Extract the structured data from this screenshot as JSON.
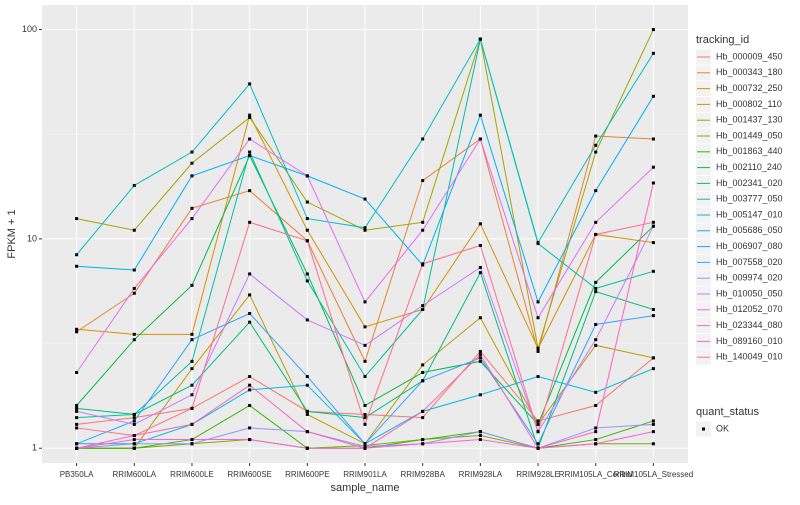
{
  "chart_data": {
    "type": "line",
    "x_label": "sample_name",
    "y_label": "FPKM + 1",
    "categories": [
      "PB350LA",
      "RRIM600LA",
      "RRIM600LE",
      "RRIM600SE",
      "RRIM600PE",
      "RRIM901LA",
      "RRIM928BA",
      "RRIM928LA",
      "RRIM928LE",
      "RRIM105LA_Control",
      "RRIM105LA_Stressed"
    ],
    "log_scale": true,
    "grid": true,
    "legend": "right",
    "ylim": [
      0.85,
      131
    ],
    "yticks": [
      1,
      10,
      100
    ],
    "legend_title": "tracking_id",
    "point_legend": {
      "title": "quant_status",
      "labels": [
        "OK"
      ],
      "color": "#000000"
    },
    "series": [
      {
        "name": "Hb_000009_450",
        "color": "#F8766D",
        "values": [
          1.3,
          1.4,
          1.55,
          2.2,
          1.5,
          1.45,
          1.4,
          2.9,
          1.35,
          1.6,
          2.7
        ]
      },
      {
        "name": "Hb_000343_180",
        "color": "#EA8331",
        "values": [
          3.6,
          5.5,
          14,
          17,
          9.8,
          2.6,
          19,
          30,
          2.9,
          31,
          30
        ]
      },
      {
        "name": "Hb_000732_250",
        "color": "#D89000",
        "values": [
          3.7,
          3.5,
          3.5,
          39,
          11,
          3.8,
          4.6,
          11.8,
          3,
          10.5,
          9.6
        ]
      },
      {
        "name": "Hb_000802_110",
        "color": "#C09B00",
        "values": [
          1,
          1,
          2.4,
          5.4,
          1.45,
          1.05,
          2.5,
          4.2,
          1.3,
          3.1,
          2.7
        ]
      },
      {
        "name": "Hb_001437_130",
        "color": "#A3A500",
        "values": [
          12.5,
          11,
          23,
          38,
          15,
          11,
          12,
          90,
          3,
          26,
          100
        ]
      },
      {
        "name": "Hb_001449_050",
        "color": "#7CAE00",
        "values": [
          1,
          1,
          1.05,
          1.1,
          1,
          1.03,
          1.1,
          1.15,
          1,
          1.05,
          1.05
        ]
      },
      {
        "name": "Hb_001863_440",
        "color": "#39B600",
        "values": [
          1,
          1,
          1.1,
          1.6,
          1,
          1,
          1.1,
          1.2,
          1,
          1.1,
          1.35
        ]
      },
      {
        "name": "Hb_002110_240",
        "color": "#00BB4E",
        "values": [
          1.6,
          3.3,
          6,
          25,
          6.8,
          1.6,
          2.3,
          2.6,
          1.3,
          6.2,
          11.5
        ]
      },
      {
        "name": "Hb_002341_020",
        "color": "#00BF7D",
        "values": [
          1.55,
          1.45,
          2,
          4,
          1.5,
          1.4,
          2.1,
          6.9,
          1,
          5.6,
          4.6
        ]
      },
      {
        "name": "Hb_003777_050",
        "color": "#00C1A3",
        "values": [
          1.4,
          1.45,
          2.6,
          26,
          6.3,
          2.2,
          4.6,
          90,
          9.5,
          5.8,
          7
        ]
      },
      {
        "name": "Hb_005147_010",
        "color": "#00BFC4",
        "values": [
          8.4,
          18,
          26,
          55,
          12.5,
          11.3,
          30,
          90,
          9.6,
          28,
          77
        ]
      },
      {
        "name": "Hb_005686_050",
        "color": "#00BAE0",
        "values": [
          1.05,
          1.05,
          1.3,
          1.9,
          2,
          1.05,
          1.5,
          1.8,
          2.2,
          1.85,
          2.4
        ]
      },
      {
        "name": "Hb_006907_080",
        "color": "#00B0F6",
        "values": [
          7.4,
          7.1,
          20,
          25,
          20,
          15.5,
          7.5,
          39,
          5,
          17,
          48
        ]
      },
      {
        "name": "Hb_007558_020",
        "color": "#35A2FF",
        "values": [
          1.05,
          1.35,
          3.3,
          4.4,
          2.2,
          1.05,
          2.1,
          2.7,
          1.05,
          3.9,
          4.3
        ]
      },
      {
        "name": "Hb_009974_020",
        "color": "#9590FF",
        "values": [
          1,
          1.05,
          1.05,
          1.25,
          1.2,
          1.02,
          1.05,
          1.2,
          1,
          1.25,
          1.3
        ]
      },
      {
        "name": "Hb_010050_050",
        "color": "#C77CFF",
        "values": [
          1.5,
          1.3,
          1.8,
          6.8,
          4.1,
          3.1,
          4.8,
          7.3,
          1.2,
          3.3,
          11.5
        ]
      },
      {
        "name": "Hb_012052_070",
        "color": "#E76BF3",
        "values": [
          2.3,
          5.8,
          12.5,
          30,
          20,
          5,
          11,
          30,
          4.2,
          12,
          22
        ]
      },
      {
        "name": "Hb_023344_080",
        "color": "#FA62DB",
        "values": [
          1,
          1.1,
          1.1,
          1.1,
          1,
          1,
          1.05,
          1.1,
          1,
          1.05,
          1.2
        ]
      },
      {
        "name": "Hb_089160_010",
        "color": "#FF62BC",
        "values": [
          1,
          1.15,
          1.3,
          2,
          1.2,
          1,
          1.5,
          2.8,
          1,
          1.2,
          18.5
        ]
      },
      {
        "name": "Hb_140049_010",
        "color": "#FF6C91",
        "values": [
          1.25,
          1.15,
          1.55,
          12,
          9.8,
          1.3,
          7.6,
          9.3,
          1.2,
          10.5,
          12
        ]
      }
    ]
  }
}
